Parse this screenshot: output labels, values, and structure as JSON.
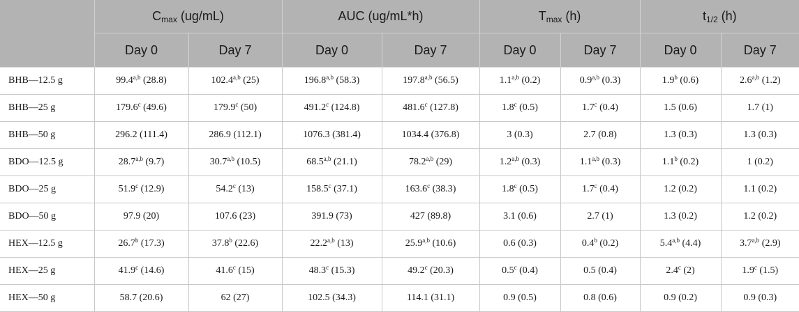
{
  "header": {
    "groups": [
      {
        "main": "C",
        "sub": "max",
        "rest": " (ug/mL)"
      },
      {
        "main": "AUC (ug/mL*h)",
        "sub": "",
        "rest": ""
      },
      {
        "main": "T",
        "sub": "max",
        "rest": " (h)"
      },
      {
        "main": "t",
        "sub": "1/2",
        "rest": " (h)"
      }
    ],
    "day0": "Day 0",
    "day7": "Day 7"
  },
  "rows": [
    {
      "label": "BHB—12.5 g",
      "cells": [
        {
          "v": "99.4",
          "s": "a,b",
          "p": " (28.8)"
        },
        {
          "v": "102.4",
          "s": "a,b",
          "p": " (25)"
        },
        {
          "v": "196.8",
          "s": "a,b",
          "p": " (58.3)"
        },
        {
          "v": "197.8",
          "s": "a,b",
          "p": " (56.5)"
        },
        {
          "v": "1.1",
          "s": "a,b",
          "p": " (0.2)"
        },
        {
          "v": "0.9",
          "s": "a,b",
          "p": " (0.3)"
        },
        {
          "v": "1.9",
          "s": "b",
          "p": " (0.6)"
        },
        {
          "v": "2.6",
          "s": "a,b",
          "p": " (1.2)"
        }
      ]
    },
    {
      "label": "BHB—25 g",
      "cells": [
        {
          "v": "179.6",
          "s": "c",
          "p": " (49.6)"
        },
        {
          "v": "179.9",
          "s": "c",
          "p": " (50)"
        },
        {
          "v": "491.2",
          "s": "c",
          "p": " (124.8)"
        },
        {
          "v": "481.6",
          "s": "c",
          "p": " (127.8)"
        },
        {
          "v": "1.8",
          "s": "c",
          "p": " (0.5)"
        },
        {
          "v": "1.7",
          "s": "c",
          "p": " (0.4)"
        },
        {
          "v": "1.5 (0.6)",
          "s": "",
          "p": ""
        },
        {
          "v": "1.7 (1)",
          "s": "",
          "p": ""
        }
      ]
    },
    {
      "label": "BHB—50 g",
      "cells": [
        {
          "v": "296.2 (111.4)",
          "s": "",
          "p": ""
        },
        {
          "v": "286.9 (112.1)",
          "s": "",
          "p": ""
        },
        {
          "v": "1076.3 (381.4)",
          "s": "",
          "p": ""
        },
        {
          "v": "1034.4 (376.8)",
          "s": "",
          "p": ""
        },
        {
          "v": "3 (0.3)",
          "s": "",
          "p": ""
        },
        {
          "v": "2.7 (0.8)",
          "s": "",
          "p": ""
        },
        {
          "v": "1.3 (0.3)",
          "s": "",
          "p": ""
        },
        {
          "v": "1.3 (0.3)",
          "s": "",
          "p": ""
        }
      ]
    },
    {
      "label": "BDO—12.5 g",
      "cells": [
        {
          "v": "28.7",
          "s": "a,b",
          "p": " (9.7)"
        },
        {
          "v": "30.7",
          "s": "a,b",
          "p": " (10.5)"
        },
        {
          "v": "68.5",
          "s": "a,b",
          "p": " (21.1)"
        },
        {
          "v": "78.2",
          "s": "a,b",
          "p": " (29)"
        },
        {
          "v": "1.2",
          "s": "a,b",
          "p": " (0.3)"
        },
        {
          "v": "1.1",
          "s": "a,b",
          "p": " (0.3)"
        },
        {
          "v": "1.1",
          "s": "b",
          "p": " (0.2)"
        },
        {
          "v": "1 (0.2)",
          "s": "",
          "p": ""
        }
      ]
    },
    {
      "label": "BDO—25 g",
      "cells": [
        {
          "v": "51.9",
          "s": "c",
          "p": " (12.9)"
        },
        {
          "v": "54.2",
          "s": "c",
          "p": " (13)"
        },
        {
          "v": "158.5",
          "s": "c",
          "p": " (37.1)"
        },
        {
          "v": "163.6",
          "s": "c",
          "p": " (38.3)"
        },
        {
          "v": "1.8",
          "s": "c",
          "p": " (0.5)"
        },
        {
          "v": "1.7",
          "s": "c",
          "p": " (0.4)"
        },
        {
          "v": "1.2 (0.2)",
          "s": "",
          "p": ""
        },
        {
          "v": "1.1 (0.2)",
          "s": "",
          "p": ""
        }
      ]
    },
    {
      "label": "BDO—50 g",
      "cells": [
        {
          "v": "97.9 (20)",
          "s": "",
          "p": ""
        },
        {
          "v": "107.6 (23)",
          "s": "",
          "p": ""
        },
        {
          "v": "391.9 (73)",
          "s": "",
          "p": ""
        },
        {
          "v": "427 (89.8)",
          "s": "",
          "p": ""
        },
        {
          "v": "3.1 (0.6)",
          "s": "",
          "p": ""
        },
        {
          "v": "2.7 (1)",
          "s": "",
          "p": ""
        },
        {
          "v": "1.3 (0.2)",
          "s": "",
          "p": ""
        },
        {
          "v": "1.2 (0.2)",
          "s": "",
          "p": ""
        }
      ]
    },
    {
      "label": "HEX—12.5 g",
      "cells": [
        {
          "v": "26.7",
          "s": "b",
          "p": " (17.3)"
        },
        {
          "v": "37.8",
          "s": "b",
          "p": " (22.6)"
        },
        {
          "v": "22.2",
          "s": "a,b",
          "p": " (13)"
        },
        {
          "v": "25.9",
          "s": "a,b",
          "p": " (10.6)"
        },
        {
          "v": "0.6 (0.3)",
          "s": "",
          "p": ""
        },
        {
          "v": "0.4",
          "s": "b",
          "p": " (0.2)"
        },
        {
          "v": "5.4",
          "s": "a,b",
          "p": " (4.4)"
        },
        {
          "v": "3.7",
          "s": "a,b",
          "p": " (2.9)"
        }
      ]
    },
    {
      "label": "HEX—25 g",
      "cells": [
        {
          "v": "41.9",
          "s": "c",
          "p": " (14.6)"
        },
        {
          "v": "41.6",
          "s": "c",
          "p": " (15)"
        },
        {
          "v": "48.3",
          "s": "c",
          "p": " (15.3)"
        },
        {
          "v": "49.2",
          "s": "c",
          "p": " (20.3)"
        },
        {
          "v": "0.5",
          "s": "c",
          "p": " (0.4)"
        },
        {
          "v": "0.5 (0.4)",
          "s": "",
          "p": ""
        },
        {
          "v": "2.4",
          "s": "c",
          "p": " (2)"
        },
        {
          "v": "1.9",
          "s": "c",
          "p": " (1.5)"
        }
      ]
    },
    {
      "label": "HEX—50 g",
      "cells": [
        {
          "v": "58.7 (20.6)",
          "s": "",
          "p": ""
        },
        {
          "v": "62 (27)",
          "s": "",
          "p": ""
        },
        {
          "v": "102.5 (34.3)",
          "s": "",
          "p": ""
        },
        {
          "v": "114.1 (31.1)",
          "s": "",
          "p": ""
        },
        {
          "v": "0.9 (0.5)",
          "s": "",
          "p": ""
        },
        {
          "v": "0.8 (0.6)",
          "s": "",
          "p": ""
        },
        {
          "v": "0.9 (0.2)",
          "s": "",
          "p": ""
        },
        {
          "v": "0.9 (0.3)",
          "s": "",
          "p": ""
        }
      ]
    }
  ]
}
